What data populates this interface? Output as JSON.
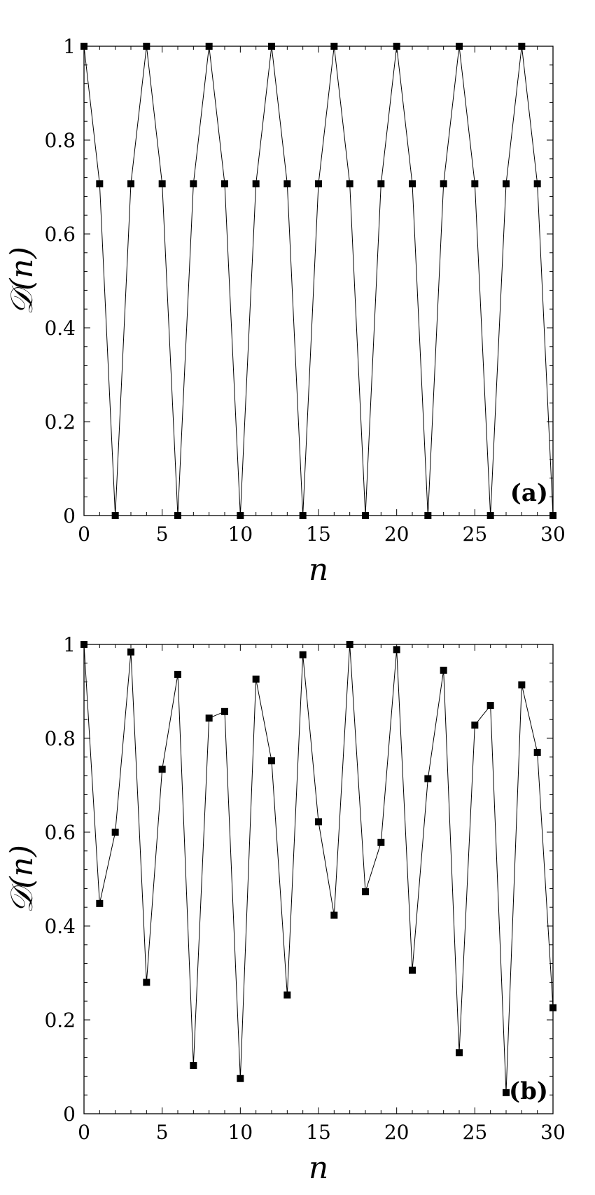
{
  "chart_data": [
    {
      "type": "line",
      "panel_label": "(a)",
      "xlabel": "n",
      "ylabel": "𝒟(n)",
      "xlim": [
        0,
        30
      ],
      "ylim": [
        0,
        1
      ],
      "xticks": [
        0,
        5,
        10,
        15,
        20,
        25,
        30
      ],
      "xtick_labels": [
        "0",
        "5",
        "10",
        "15",
        "20",
        "25",
        "30"
      ],
      "yticks": [
        0,
        0.2,
        0.4,
        0.6,
        0.8,
        1
      ],
      "ytick_labels": [
        "0",
        "0.2",
        "0.4",
        "0.6",
        "0.8",
        "1"
      ],
      "marker": "square",
      "line_color": "#000000",
      "x": [
        0,
        1,
        2,
        3,
        4,
        5,
        6,
        7,
        8,
        9,
        10,
        11,
        12,
        13,
        14,
        15,
        16,
        17,
        18,
        19,
        20,
        21,
        22,
        23,
        24,
        25,
        26,
        27,
        28,
        29,
        30
      ],
      "values": [
        1,
        0.707,
        0,
        0.707,
        1,
        0.707,
        0,
        0.707,
        1,
        0.707,
        0,
        0.707,
        1,
        0.707,
        0,
        0.707,
        1,
        0.707,
        0,
        0.707,
        1,
        0.707,
        0,
        0.707,
        1,
        0.707,
        0,
        0.707,
        1,
        0.707,
        0
      ]
    },
    {
      "type": "line",
      "panel_label": "(b)",
      "xlabel": "n",
      "ylabel": "𝒟(n)",
      "xlim": [
        0,
        30
      ],
      "ylim": [
        0,
        1
      ],
      "xticks": [
        0,
        5,
        10,
        15,
        20,
        25,
        30
      ],
      "xtick_labels": [
        "0",
        "5",
        "10",
        "15",
        "20",
        "25",
        "30"
      ],
      "yticks": [
        0,
        0.2,
        0.4,
        0.6,
        0.8,
        1
      ],
      "ytick_labels": [
        "0",
        "0.2",
        "0.4",
        "0.6",
        "0.8",
        "1"
      ],
      "marker": "square",
      "line_color": "#000000",
      "x": [
        0,
        1,
        2,
        3,
        4,
        5,
        6,
        7,
        8,
        9,
        10,
        11,
        12,
        13,
        14,
        15,
        16,
        17,
        18,
        19,
        20,
        21,
        22,
        23,
        24,
        25,
        26,
        27,
        28,
        29,
        30
      ],
      "values": [
        1,
        0.448,
        0.6,
        0.984,
        0.28,
        0.734,
        0.936,
        0.103,
        0.843,
        0.857,
        0.075,
        0.926,
        0.752,
        0.253,
        0.978,
        0.622,
        0.423,
        1,
        0.473,
        0.578,
        0.989,
        0.306,
        0.714,
        0.945,
        0.13,
        0.828,
        0.87,
        0.045,
        0.914,
        0.77,
        0.226
      ]
    }
  ]
}
